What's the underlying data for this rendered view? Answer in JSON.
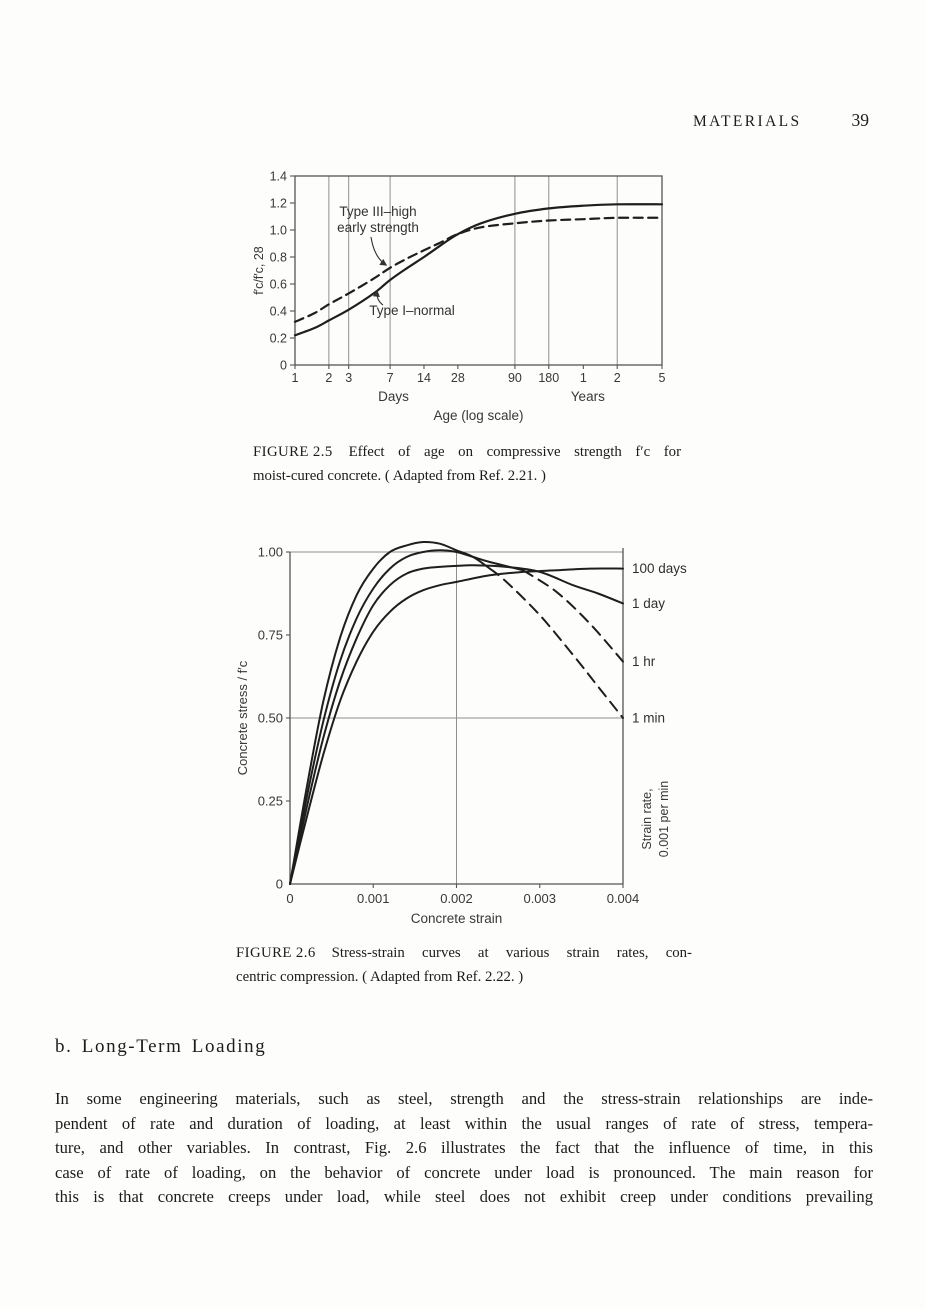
{
  "header": {
    "title": "MATERIALS",
    "page_number": "39"
  },
  "figure_2_5": {
    "caption_label": "FIGURE 2.5",
    "caption_lines": [
      "Effect of age on compressive strength f′c for",
      "moist-cured concrete. ( Adapted from Ref. 2.21. )"
    ]
  },
  "figure_2_6": {
    "caption_label": "FIGURE 2.6",
    "caption_lines": [
      "Stress-strain curves at various strain rates, con-",
      "centric compression. ( Adapted from Ref. 2.22. )"
    ]
  },
  "section_b": {
    "heading": "b. Long-Term Loading",
    "paragraph_lines": [
      "In some engineering materials, such as steel, strength and the stress-strain relationships are inde-",
      "pendent of rate and duration of loading, at least within the usual ranges of rate of stress, tempera-",
      "ture, and other variables. In contrast, Fig. 2.6 illustrates the fact that the influence of time, in this",
      "case of rate of loading, on the behavior of concrete under load is pronounced. The main reason for",
      "this is that concrete creeps under load, while steel does not exhibit creep under conditions prevailing"
    ]
  },
  "chart_data": [
    {
      "id": "fig-2-5",
      "type": "line",
      "title": "Effect of age on compressive strength, moist-cured concrete",
      "xlabel": "Age (log scale)",
      "ylabel": "f′c/f′c, 28",
      "x_scale": "log",
      "xlim_days": [
        1,
        1825
      ],
      "ylim": [
        0,
        1.4
      ],
      "grid": "vertical-only",
      "x_group_labels": [
        {
          "text": "Days",
          "at_days": 7.5
        },
        {
          "text": "Years",
          "at_days": 400
        }
      ],
      "x_ticks": [
        {
          "label": "1",
          "days": 1
        },
        {
          "label": "2",
          "days": 2
        },
        {
          "label": "3",
          "days": 3
        },
        {
          "label": "7",
          "days": 7
        },
        {
          "label": "14",
          "days": 14
        },
        {
          "label": "28",
          "days": 28
        },
        {
          "label": "90",
          "days": 90
        },
        {
          "label": "180",
          "days": 180
        },
        {
          "label": "1",
          "days": 365
        },
        {
          "label": "2",
          "days": 730
        },
        {
          "label": "5",
          "days": 1825
        }
      ],
      "y_ticks": [
        {
          "label": "0",
          "v": 0
        },
        {
          "label": "0.2",
          "v": 0.2
        },
        {
          "label": "0.4",
          "v": 0.4
        },
        {
          "label": "0.6",
          "v": 0.6
        },
        {
          "label": "0.8",
          "v": 0.8
        },
        {
          "label": "1.0",
          "v": 1.0
        },
        {
          "label": "1.2",
          "v": 1.2
        },
        {
          "label": "1.4",
          "v": 1.4
        }
      ],
      "gridlines_days": [
        2,
        3,
        7,
        90,
        180,
        730
      ],
      "series": [
        {
          "name": "Type I–normal",
          "line": "solid",
          "points": [
            [
              1,
              0.22
            ],
            [
              1.5,
              0.275
            ],
            [
              2,
              0.33
            ],
            [
              3,
              0.41
            ],
            [
              5,
              0.53
            ],
            [
              7,
              0.63
            ],
            [
              10,
              0.72
            ],
            [
              14,
              0.8
            ],
            [
              20,
              0.89
            ],
            [
              28,
              0.97
            ],
            [
              45,
              1.05
            ],
            [
              90,
              1.12
            ],
            [
              180,
              1.16
            ],
            [
              365,
              1.18
            ],
            [
              730,
              1.19
            ],
            [
              1825,
              1.19
            ]
          ]
        },
        {
          "name": "Type III–high early strength",
          "line": "dashed",
          "points": [
            [
              1,
              0.32
            ],
            [
              1.5,
              0.385
            ],
            [
              2,
              0.45
            ],
            [
              3,
              0.53
            ],
            [
              5,
              0.64
            ],
            [
              7,
              0.72
            ],
            [
              10,
              0.79
            ],
            [
              14,
              0.85
            ],
            [
              20,
              0.91
            ],
            [
              28,
              0.97
            ],
            [
              45,
              1.02
            ],
            [
              90,
              1.05
            ],
            [
              180,
              1.07
            ],
            [
              365,
              1.08
            ],
            [
              730,
              1.09
            ],
            [
              1825,
              1.09
            ]
          ]
        }
      ],
      "annotations": [
        {
          "lines": [
            "Type III–high",
            "early strength"
          ],
          "points_to": "Type III–high early strength"
        },
        {
          "lines": [
            "Type I–normal"
          ],
          "points_to": "Type I–normal"
        }
      ]
    },
    {
      "id": "fig-2-6",
      "type": "line",
      "title": "Stress-strain curves at various strain rates, concentric compression",
      "xlabel": "Concrete strain",
      "ylabel": "Concrete stress / f′c",
      "right_axis_label_lines": [
        "Strain rate,",
        "0.001 per min"
      ],
      "xlim": [
        0,
        0.004
      ],
      "ylim": [
        0,
        1.0
      ],
      "x_ticks": [
        {
          "label": "0",
          "v": 0
        },
        {
          "label": "0.001",
          "v": 0.001
        },
        {
          "label": "0.002",
          "v": 0.002
        },
        {
          "label": "0.003",
          "v": 0.003
        },
        {
          "label": "0.004",
          "v": 0.004
        }
      ],
      "y_ticks": [
        {
          "label": "0",
          "v": 0
        },
        {
          "label": "0.25",
          "v": 0.25
        },
        {
          "label": "0.50",
          "v": 0.5
        },
        {
          "label": "0.75",
          "v": 0.75
        },
        {
          "label": "1.00",
          "v": 1.0
        }
      ],
      "gridlines": {
        "horizontal_v": [
          0.5,
          1.0
        ],
        "vertical_v": [
          0.002
        ]
      },
      "series": [
        {
          "name": "100 days",
          "line": "solid",
          "label_v": 0.95,
          "points": [
            [
              0,
              0
            ],
            [
              0.0002,
              0.2
            ],
            [
              0.0004,
              0.39
            ],
            [
              0.0006,
              0.55
            ],
            [
              0.0008,
              0.67
            ],
            [
              0.001,
              0.76
            ],
            [
              0.0012,
              0.82
            ],
            [
              0.0014,
              0.86
            ],
            [
              0.0016,
              0.885
            ],
            [
              0.0018,
              0.9
            ],
            [
              0.002,
              0.91
            ],
            [
              0.0024,
              0.93
            ],
            [
              0.0028,
              0.94
            ],
            [
              0.0032,
              0.945
            ],
            [
              0.0036,
              0.95
            ],
            [
              0.004,
              0.95
            ]
          ]
        },
        {
          "name": "1 day",
          "line": "solid",
          "label_v": 0.845,
          "points": [
            [
              0,
              0
            ],
            [
              0.0002,
              0.23
            ],
            [
              0.0004,
              0.44
            ],
            [
              0.0006,
              0.61
            ],
            [
              0.0008,
              0.74
            ],
            [
              0.001,
              0.84
            ],
            [
              0.0012,
              0.9
            ],
            [
              0.0014,
              0.935
            ],
            [
              0.0016,
              0.95
            ],
            [
              0.0018,
              0.955
            ],
            [
              0.002,
              0.958
            ],
            [
              0.0022,
              0.96
            ],
            [
              0.0026,
              0.955
            ],
            [
              0.003,
              0.94
            ],
            [
              0.0034,
              0.9
            ],
            [
              0.0037,
              0.875
            ],
            [
              0.004,
              0.845
            ]
          ]
        },
        {
          "name": "1 hr",
          "line": "dashed_tail",
          "dash_from": 0.0027,
          "label_v": 0.67,
          "points": [
            [
              0,
              0
            ],
            [
              0.0002,
              0.26
            ],
            [
              0.0004,
              0.49
            ],
            [
              0.0006,
              0.67
            ],
            [
              0.0008,
              0.8
            ],
            [
              0.001,
              0.89
            ],
            [
              0.0012,
              0.95
            ],
            [
              0.0014,
              0.985
            ],
            [
              0.0016,
              1.0
            ],
            [
              0.0018,
              1.005
            ],
            [
              0.002,
              1.0
            ],
            [
              0.0022,
              0.985
            ],
            [
              0.0024,
              0.97
            ],
            [
              0.0028,
              0.945
            ],
            [
              0.0032,
              0.88
            ],
            [
              0.0036,
              0.785
            ],
            [
              0.004,
              0.67
            ]
          ]
        },
        {
          "name": "1 min",
          "line": "dashed_tail",
          "dash_from": 0.0024,
          "label_v": 0.5,
          "points": [
            [
              0,
              0
            ],
            [
              0.0002,
              0.29
            ],
            [
              0.0004,
              0.55
            ],
            [
              0.0006,
              0.74
            ],
            [
              0.0008,
              0.87
            ],
            [
              0.001,
              0.95
            ],
            [
              0.0012,
              1.0
            ],
            [
              0.0014,
              1.02
            ],
            [
              0.0016,
              1.03
            ],
            [
              0.0018,
              1.025
            ],
            [
              0.002,
              1.005
            ],
            [
              0.0022,
              0.985
            ],
            [
              0.0024,
              0.95
            ],
            [
              0.0026,
              0.91
            ],
            [
              0.003,
              0.81
            ],
            [
              0.0034,
              0.69
            ],
            [
              0.0037,
              0.595
            ],
            [
              0.004,
              0.5
            ]
          ]
        }
      ]
    }
  ]
}
